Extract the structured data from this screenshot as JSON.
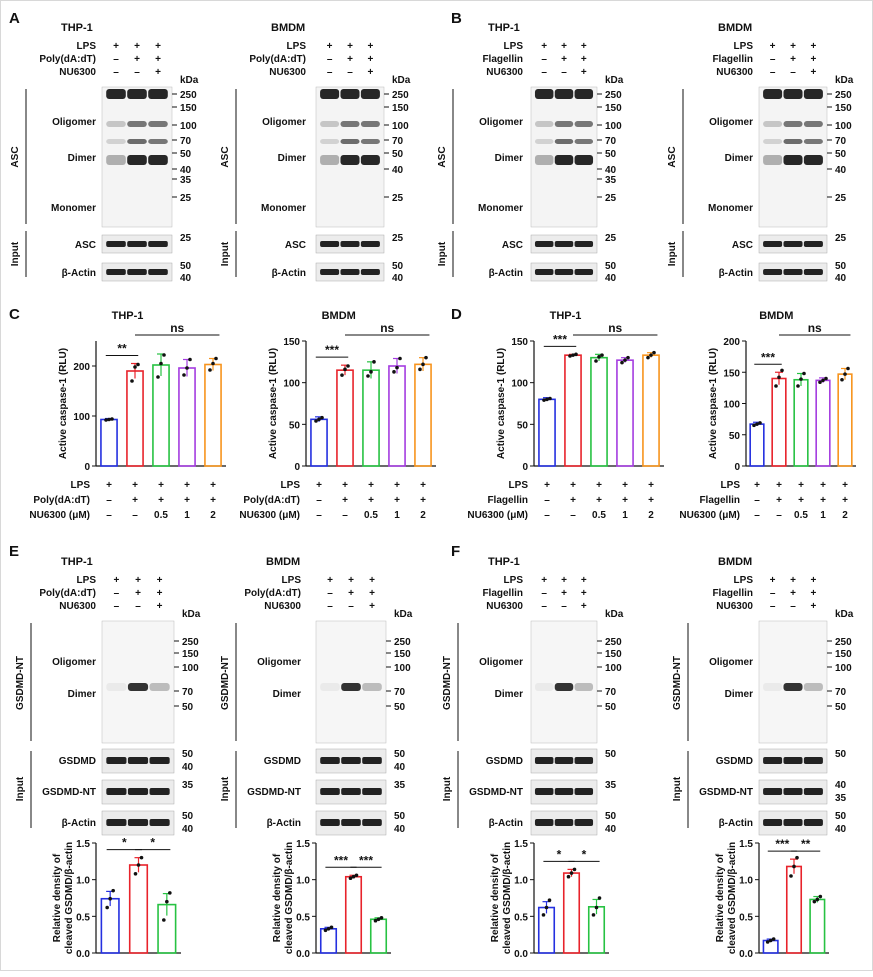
{
  "figure": {
    "panels": [
      {
        "letter": "A",
        "blots": [
          {
            "title": "THP-1",
            "rows": [
              [
                "LPS",
                [
                  "+",
                  "+",
                  "+"
                ]
              ],
              [
                "Poly(dA:dT)",
                [
                  "–",
                  "+",
                  "+"
                ]
              ],
              [
                "NU6300",
                [
                  "–",
                  "–",
                  "+"
                ]
              ]
            ],
            "main_axis": "ASC",
            "main_labels": [
              "Oligomer",
              "Dimer",
              "Monomer"
            ],
            "kda": [
              "250",
              "150",
              "100",
              "70",
              "50",
              "40",
              "35",
              "25"
            ],
            "input_rows": [
              [
                "ASC",
                "25"
              ],
              [
                "β-Actin",
                "50",
                "40"
              ]
            ]
          },
          {
            "title": "BMDM",
            "rows": [
              [
                "LPS",
                [
                  "+",
                  "+",
                  "+"
                ]
              ],
              [
                "Poly(dA:dT)",
                [
                  "–",
                  "+",
                  "+"
                ]
              ],
              [
                "NU6300",
                [
                  "–",
                  "–",
                  "+"
                ]
              ]
            ],
            "main_axis": "ASC",
            "main_labels": [
              "Oligomer",
              "Dimer",
              "Monomer"
            ],
            "kda": [
              "250",
              "150",
              "100",
              "70",
              "50",
              "40",
              "25"
            ],
            "input_rows": [
              [
                "ASC",
                "25"
              ],
              [
                "β-Actin",
                "50",
                "40"
              ]
            ]
          }
        ]
      },
      {
        "letter": "B",
        "blots": [
          {
            "title": "THP-1",
            "rows": [
              [
                "LPS",
                [
                  "+",
                  "+",
                  "+"
                ]
              ],
              [
                "Flagellin",
                [
                  "–",
                  "+",
                  "+"
                ]
              ],
              [
                "NU6300",
                [
                  "–",
                  "–",
                  "+"
                ]
              ]
            ],
            "main_axis": "ASC",
            "main_labels": [
              "Oligomer",
              "Dimer",
              "Monomer"
            ],
            "kda": [
              "250",
              "150",
              "100",
              "70",
              "50",
              "40",
              "35",
              "25"
            ],
            "input_rows": [
              [
                "ASC",
                "25"
              ],
              [
                "β-Actin",
                "50",
                "40"
              ]
            ]
          },
          {
            "title": "BMDM",
            "rows": [
              [
                "LPS",
                [
                  "+",
                  "+",
                  "+"
                ]
              ],
              [
                "Flagellin",
                [
                  "–",
                  "+",
                  "+"
                ]
              ],
              [
                "NU6300",
                [
                  "–",
                  "–",
                  "+"
                ]
              ]
            ],
            "main_axis": "ASC",
            "main_labels": [
              "Oligomer",
              "Dimer",
              "Monomer"
            ],
            "kda": [
              "250",
              "150",
              "100",
              "70",
              "50",
              "40",
              "25"
            ],
            "input_rows": [
              [
                "ASC",
                "25"
              ],
              [
                "β-Actin",
                "50",
                "40"
              ]
            ]
          }
        ]
      },
      {
        "letter": "E",
        "blots": [
          {
            "title": "THP-1",
            "rows": [
              [
                "LPS",
                [
                  "+",
                  "+",
                  "+"
                ]
              ],
              [
                "Poly(dA:dT)",
                [
                  "–",
                  "+",
                  "+"
                ]
              ],
              [
                "NU6300",
                [
                  "–",
                  "–",
                  "+"
                ]
              ]
            ],
            "main_axis": "GSDMD-NT",
            "main_labels": [
              "Oligomer",
              "Dimer"
            ],
            "kda": [
              "250",
              "150",
              "100",
              "70",
              "50"
            ],
            "input_rows": [
              [
                "GSDMD",
                "50",
                "40"
              ],
              [
                "GSDMD-NT",
                "35"
              ],
              [
                "β-Actin",
                "50",
                "40"
              ]
            ]
          },
          {
            "title": "BMDM",
            "rows": [
              [
                "LPS",
                [
                  "+",
                  "+",
                  "+"
                ]
              ],
              [
                "Poly(dA:dT)",
                [
                  "–",
                  "+",
                  "+"
                ]
              ],
              [
                "NU6300",
                [
                  "–",
                  "–",
                  "+"
                ]
              ]
            ],
            "main_axis": "GSDMD-NT",
            "main_labels": [
              "Oligomer",
              "Dimer"
            ],
            "kda": [
              "250",
              "150",
              "100",
              "70",
              "50"
            ],
            "input_rows": [
              [
                "GSDMD",
                "50",
                "40"
              ],
              [
                "GSDMD-NT",
                "35"
              ],
              [
                "β-Actin",
                "50",
                "40"
              ]
            ]
          }
        ]
      },
      {
        "letter": "F",
        "blots": [
          {
            "title": "THP-1",
            "rows": [
              [
                "LPS",
                [
                  "+",
                  "+",
                  "+"
                ]
              ],
              [
                "Flagellin",
                [
                  "–",
                  "+",
                  "+"
                ]
              ],
              [
                "NU6300",
                [
                  "–",
                  "–",
                  "+"
                ]
              ]
            ],
            "main_axis": "GSDMD-NT",
            "main_labels": [
              "Oligomer",
              "Dimer"
            ],
            "kda": [
              "250",
              "150",
              "100",
              "70",
              "50"
            ],
            "input_rows": [
              [
                "GSDMD",
                "50"
              ],
              [
                "GSDMD-NT",
                "35"
              ],
              [
                "β-Actin",
                "50",
                "40"
              ]
            ]
          },
          {
            "title": "BMDM",
            "rows": [
              [
                "LPS",
                [
                  "+",
                  "+",
                  "+"
                ]
              ],
              [
                "Flagellin",
                [
                  "–",
                  "+",
                  "+"
                ]
              ],
              [
                "NU6300",
                [
                  "–",
                  "–",
                  "+"
                ]
              ]
            ],
            "main_axis": "GSDMD-NT",
            "main_labels": [
              "Oligomer",
              "Dimer"
            ],
            "kda": [
              "250",
              "150",
              "100",
              "70",
              "50"
            ],
            "input_rows": [
              [
                "GSDMD",
                "50"
              ],
              [
                "GSDMD-NT",
                "40",
                "35"
              ],
              [
                "β-Actin",
                "50",
                "40"
              ]
            ]
          }
        ]
      },
      {
        "letter": "C"
      },
      {
        "letter": "D"
      }
    ],
    "kda_label": "kDa",
    "input_label": "Input",
    "cd_treatment_rows": {
      "C": [
        [
          "LPS",
          [
            "+",
            "+",
            "+",
            "+",
            "+"
          ]
        ],
        [
          "Poly(dA:dT)",
          [
            "–",
            "+",
            "+",
            "+",
            "+"
          ]
        ],
        [
          "NU6300 (μM)",
          [
            "–",
            "–",
            "0.5",
            "1",
            "2"
          ]
        ]
      ],
      "D": [
        [
          "LPS",
          [
            "+",
            "+",
            "+",
            "+",
            "+"
          ]
        ],
        [
          "Flagellin",
          [
            "–",
            "+",
            "+",
            "+",
            "+"
          ]
        ],
        [
          "NU6300 (μM)",
          [
            "–",
            "–",
            "0.5",
            "1",
            "2"
          ]
        ]
      ]
    }
  },
  "colors": {
    "blue": "#2430e0",
    "red": "#e8232b",
    "green": "#27c242",
    "purple": "#a43ce0",
    "orange": "#f7941d"
  },
  "chart_data": [
    {
      "type": "bar",
      "title": "THP-1",
      "ylabel": "Active caspase-1 (RLU)",
      "ylim": [
        0,
        250
      ],
      "yticks": [
        0,
        100,
        200
      ],
      "categories": [
        "1",
        "2",
        "3",
        "4",
        "5"
      ],
      "values": [
        93,
        190,
        202,
        196,
        203
      ],
      "errors": [
        2,
        15,
        22,
        17,
        12
      ],
      "points": [
        [
          92,
          93,
          94
        ],
        [
          170,
          198,
          203
        ],
        [
          178,
          205,
          222
        ],
        [
          182,
          196,
          213
        ],
        [
          192,
          205,
          215
        ]
      ],
      "annotations": [
        {
          "text": "**",
          "from": 0,
          "to": 1
        },
        {
          "text": "ns",
          "from": 1,
          "to": 4
        }
      ]
    },
    {
      "type": "bar",
      "title": "BMDM",
      "ylabel": "Active caspase-1 (RLU)",
      "ylim": [
        0,
        150
      ],
      "yticks": [
        0,
        50,
        100,
        150
      ],
      "categories": [
        "1",
        "2",
        "3",
        "4",
        "5"
      ],
      "values": [
        56,
        115,
        115,
        120,
        122
      ],
      "errors": [
        3,
        6,
        10,
        9,
        8
      ],
      "points": [
        [
          54,
          56,
          58
        ],
        [
          109,
          116,
          120
        ],
        [
          108,
          113,
          125
        ],
        [
          113,
          118,
          129
        ],
        [
          116,
          122,
          130
        ]
      ],
      "annotations": [
        {
          "text": "***",
          "from": 0,
          "to": 1
        },
        {
          "text": "ns",
          "from": 1,
          "to": 4
        }
      ]
    },
    {
      "type": "bar",
      "title": "THP-1",
      "ylabel": "Active caspase-1 (RLU)",
      "ylim": [
        0,
        150
      ],
      "yticks": [
        0,
        50,
        100,
        150
      ],
      "categories": [
        "1",
        "2",
        "3",
        "4",
        "5"
      ],
      "values": [
        80,
        133,
        130,
        127,
        133
      ],
      "errors": [
        2,
        1,
        4,
        3,
        3
      ],
      "points": [
        [
          79,
          80,
          81
        ],
        [
          132,
          133,
          134
        ],
        [
          126,
          131,
          133
        ],
        [
          124,
          127,
          130
        ],
        [
          130,
          133,
          136
        ]
      ],
      "annotations": [
        {
          "text": "***",
          "from": 0,
          "to": 1
        },
        {
          "text": "ns",
          "from": 1,
          "to": 4
        }
      ]
    },
    {
      "type": "bar",
      "title": "BMDM",
      "ylabel": "Active caspase-1 (RLU)",
      "ylim": [
        0,
        200
      ],
      "yticks": [
        0,
        50,
        100,
        150,
        200
      ],
      "categories": [
        "1",
        "2",
        "3",
        "4",
        "5"
      ],
      "values": [
        67,
        140,
        138,
        137,
        147
      ],
      "errors": [
        3,
        10,
        10,
        4,
        9
      ],
      "points": [
        [
          65,
          67,
          69
        ],
        [
          128,
          142,
          153
        ],
        [
          128,
          139,
          148
        ],
        [
          134,
          137,
          140
        ],
        [
          138,
          147,
          156
        ]
      ],
      "annotations": [
        {
          "text": "***",
          "from": 0,
          "to": 1
        },
        {
          "text": "ns",
          "from": 1,
          "to": 4
        }
      ]
    },
    {
      "type": "bar",
      "title": "",
      "ylabel": "Relative density of\ncleaved GSDMD/β-actin",
      "ylim": [
        0,
        1.5
      ],
      "yticks": [
        0.0,
        0.5,
        1.0,
        1.5
      ],
      "categories": [
        "1",
        "2",
        "3"
      ],
      "values": [
        0.74,
        1.2,
        0.66
      ],
      "errors": [
        0.1,
        0.1,
        0.15
      ],
      "points": [
        [
          0.62,
          0.74,
          0.85
        ],
        [
          1.08,
          1.2,
          1.3
        ],
        [
          0.45,
          0.7,
          0.82
        ]
      ],
      "annotations": [
        {
          "text": "*",
          "from": 0,
          "to": 1
        },
        {
          "text": "*",
          "from": 1,
          "to": 2
        }
      ]
    },
    {
      "type": "bar",
      "title": "",
      "ylabel": "Relative density of\ncleaved GSDMD/β-actin",
      "ylim": [
        0,
        1.5
      ],
      "yticks": [
        0.0,
        0.5,
        1.0,
        1.5
      ],
      "categories": [
        "1",
        "2",
        "3"
      ],
      "values": [
        0.33,
        1.04,
        0.46
      ],
      "errors": [
        0.02,
        0.02,
        0.02
      ],
      "points": [
        [
          0.31,
          0.33,
          0.35
        ],
        [
          1.02,
          1.04,
          1.06
        ],
        [
          0.44,
          0.46,
          0.48
        ]
      ],
      "annotations": [
        {
          "text": "***",
          "from": 0,
          "to": 1
        },
        {
          "text": "***",
          "from": 1,
          "to": 2
        }
      ]
    },
    {
      "type": "bar",
      "title": "",
      "ylabel": "Relative density of\ncleaved GSDMD/β-actin",
      "ylim": [
        0,
        1.5
      ],
      "yticks": [
        0.0,
        0.5,
        1.0,
        1.5
      ],
      "categories": [
        "1",
        "2",
        "3"
      ],
      "values": [
        0.62,
        1.09,
        0.63
      ],
      "errors": [
        0.08,
        0.05,
        0.1
      ],
      "points": [
        [
          0.52,
          0.62,
          0.72
        ],
        [
          1.04,
          1.09,
          1.14
        ],
        [
          0.52,
          0.62,
          0.75
        ]
      ],
      "annotations": [
        {
          "text": "*",
          "from": 0,
          "to": 1
        },
        {
          "text": "*",
          "from": 1,
          "to": 2
        }
      ]
    },
    {
      "type": "bar",
      "title": "",
      "ylabel": "Relative density of\ncleaved GSDMD/β-actin",
      "ylim": [
        0,
        1.5
      ],
      "yticks": [
        0.0,
        0.5,
        1.0,
        1.5
      ],
      "categories": [
        "1",
        "2",
        "3"
      ],
      "values": [
        0.17,
        1.18,
        0.73
      ],
      "errors": [
        0.02,
        0.1,
        0.04
      ],
      "points": [
        [
          0.15,
          0.17,
          0.19
        ],
        [
          1.05,
          1.18,
          1.3
        ],
        [
          0.7,
          0.73,
          0.77
        ]
      ],
      "annotations": [
        {
          "text": "***",
          "from": 0,
          "to": 1
        },
        {
          "text": "**",
          "from": 1,
          "to": 2
        }
      ]
    }
  ]
}
